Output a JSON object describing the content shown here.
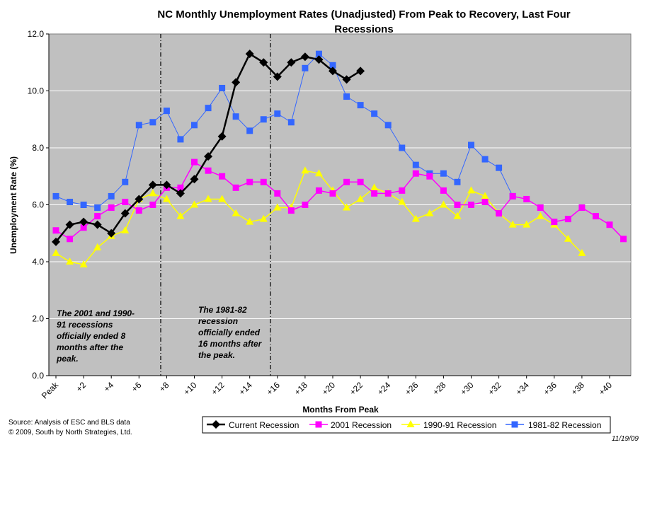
{
  "chart_data": {
    "type": "line",
    "title_line1": "NC Monthly Unemployment Rates (Unadjusted) From Peak to Recovery, Last Four",
    "title_line2": "Recessions",
    "xlabel": "Months From Peak",
    "ylabel": "Unemployment Rate (%)",
    "ylim": [
      0,
      12
    ],
    "yticks": [
      "0.0",
      "2.0",
      "4.0",
      "6.0",
      "8.0",
      "10.0",
      "12.0"
    ],
    "xlim": [
      0,
      42
    ],
    "xtick_labels": [
      "Peak",
      "+2",
      "+4",
      "+6",
      "+8",
      "+10",
      "+12",
      "+14",
      "+16",
      "+18",
      "+20",
      "+22",
      "+24",
      "+26",
      "+28",
      "+30",
      "+32",
      "+34",
      "+36",
      "+38",
      "+40"
    ],
    "grid": "horizontal",
    "legend_position": "bottom",
    "series": [
      {
        "name": "Current Recession",
        "color": "#000000",
        "marker": "diamond",
        "values": [
          4.7,
          5.3,
          5.4,
          5.3,
          5.0,
          5.7,
          6.2,
          6.7,
          6.7,
          6.4,
          6.9,
          7.7,
          8.4,
          10.3,
          11.3,
          11.0,
          10.5,
          11.0,
          11.2,
          11.1,
          10.7,
          10.4,
          10.7
        ]
      },
      {
        "name": "2001 Recession",
        "color": "#ff00ff",
        "marker": "square",
        "values": [
          5.1,
          4.8,
          5.2,
          5.6,
          5.9,
          6.1,
          5.8,
          6.0,
          6.6,
          6.6,
          7.5,
          7.2,
          7.0,
          6.6,
          6.8,
          6.8,
          6.4,
          5.8,
          6.0,
          6.5,
          6.4,
          6.8,
          6.8,
          6.4,
          6.4,
          6.5,
          7.1,
          7.0,
          6.5,
          6.0,
          6.0,
          6.1,
          5.7,
          6.3,
          6.2,
          5.9,
          5.4,
          5.5,
          5.9,
          5.6,
          5.3,
          4.8
        ]
      },
      {
        "name": "1990-91 Recession",
        "color": "#ffff00",
        "marker": "triangle",
        "values": [
          4.3,
          4.0,
          3.9,
          4.5,
          4.9,
          5.1,
          6.2,
          6.4,
          6.2,
          5.6,
          6.0,
          6.2,
          6.2,
          5.7,
          5.4,
          5.5,
          5.9,
          5.9,
          7.2,
          7.1,
          6.5,
          5.9,
          6.2,
          6.6,
          6.4,
          6.1,
          5.5,
          5.7,
          6.0,
          5.6,
          6.5,
          6.3,
          5.7,
          5.3,
          5.3,
          5.6,
          5.3,
          4.8,
          4.3
        ]
      },
      {
        "name": "1981-82 Recession",
        "color": "#3366ff",
        "marker": "square",
        "values": [
          6.3,
          6.1,
          6.0,
          5.9,
          6.3,
          6.8,
          8.8,
          8.9,
          9.3,
          8.3,
          8.8,
          9.4,
          10.1,
          9.1,
          8.6,
          9.0,
          9.2,
          8.9,
          10.8,
          11.3,
          10.9,
          9.8,
          9.5,
          9.2,
          8.8,
          8.0,
          7.4,
          7.1,
          7.1,
          6.8,
          8.1,
          7.6,
          7.3,
          6.3
        ]
      }
    ],
    "annotations": {
      "note_2001": [
        "The 2001 and 1990-",
        "91 recessions",
        "officially ended 8",
        "months after the",
        "peak."
      ],
      "note_1981": [
        "The 1981-82",
        "recession",
        "officially ended",
        "16 months after",
        "the peak."
      ]
    }
  },
  "source_line1": "Source:  Analysis of  ESC and BLS data",
  "source_line2": "© 2009, South by North Strategies, Ltd.",
  "date_stamp": "11/19/09"
}
